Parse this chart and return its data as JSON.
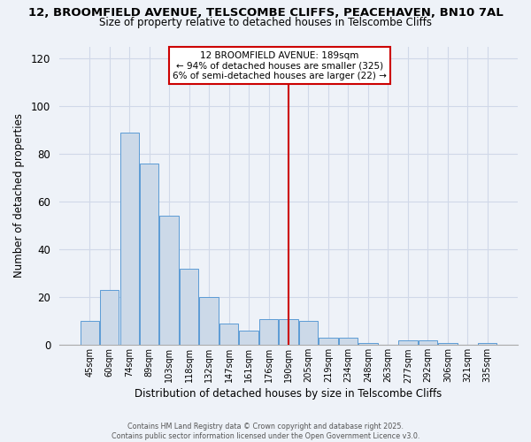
{
  "title_line1": "12, BROOMFIELD AVENUE, TELSCOMBE CLIFFS, PEACEHAVEN, BN10 7AL",
  "title_line2": "Size of property relative to detached houses in Telscombe Cliffs",
  "xlabel": "Distribution of detached houses by size in Telscombe Cliffs",
  "ylabel": "Number of detached properties",
  "categories": [
    "45sqm",
    "60sqm",
    "74sqm",
    "89sqm",
    "103sqm",
    "118sqm",
    "132sqm",
    "147sqm",
    "161sqm",
    "176sqm",
    "190sqm",
    "205sqm",
    "219sqm",
    "234sqm",
    "248sqm",
    "263sqm",
    "277sqm",
    "292sqm",
    "306sqm",
    "321sqm",
    "335sqm"
  ],
  "values": [
    10,
    23,
    89,
    76,
    54,
    32,
    20,
    9,
    6,
    11,
    11,
    10,
    3,
    3,
    1,
    0,
    2,
    2,
    1,
    0,
    1
  ],
  "bar_color": "#ccd9e8",
  "bar_edge_color": "#5b9bd5",
  "vline_x": 10,
  "vline_color": "#cc0000",
  "ylim": [
    0,
    125
  ],
  "yticks": [
    0,
    20,
    40,
    60,
    80,
    100,
    120
  ],
  "annotation_title": "12 BROOMFIELD AVENUE: 189sqm",
  "annotation_line1": "← 94% of detached houses are smaller (325)",
  "annotation_line2": "6% of semi-detached houses are larger (22) →",
  "footer1": "Contains HM Land Registry data © Crown copyright and database right 2025.",
  "footer2": "Contains public sector information licensed under the Open Government Licence v3.0.",
  "background_color": "#eef2f8",
  "grid_color": "#d0d8e8",
  "plot_bg_color": "#eef2f8"
}
